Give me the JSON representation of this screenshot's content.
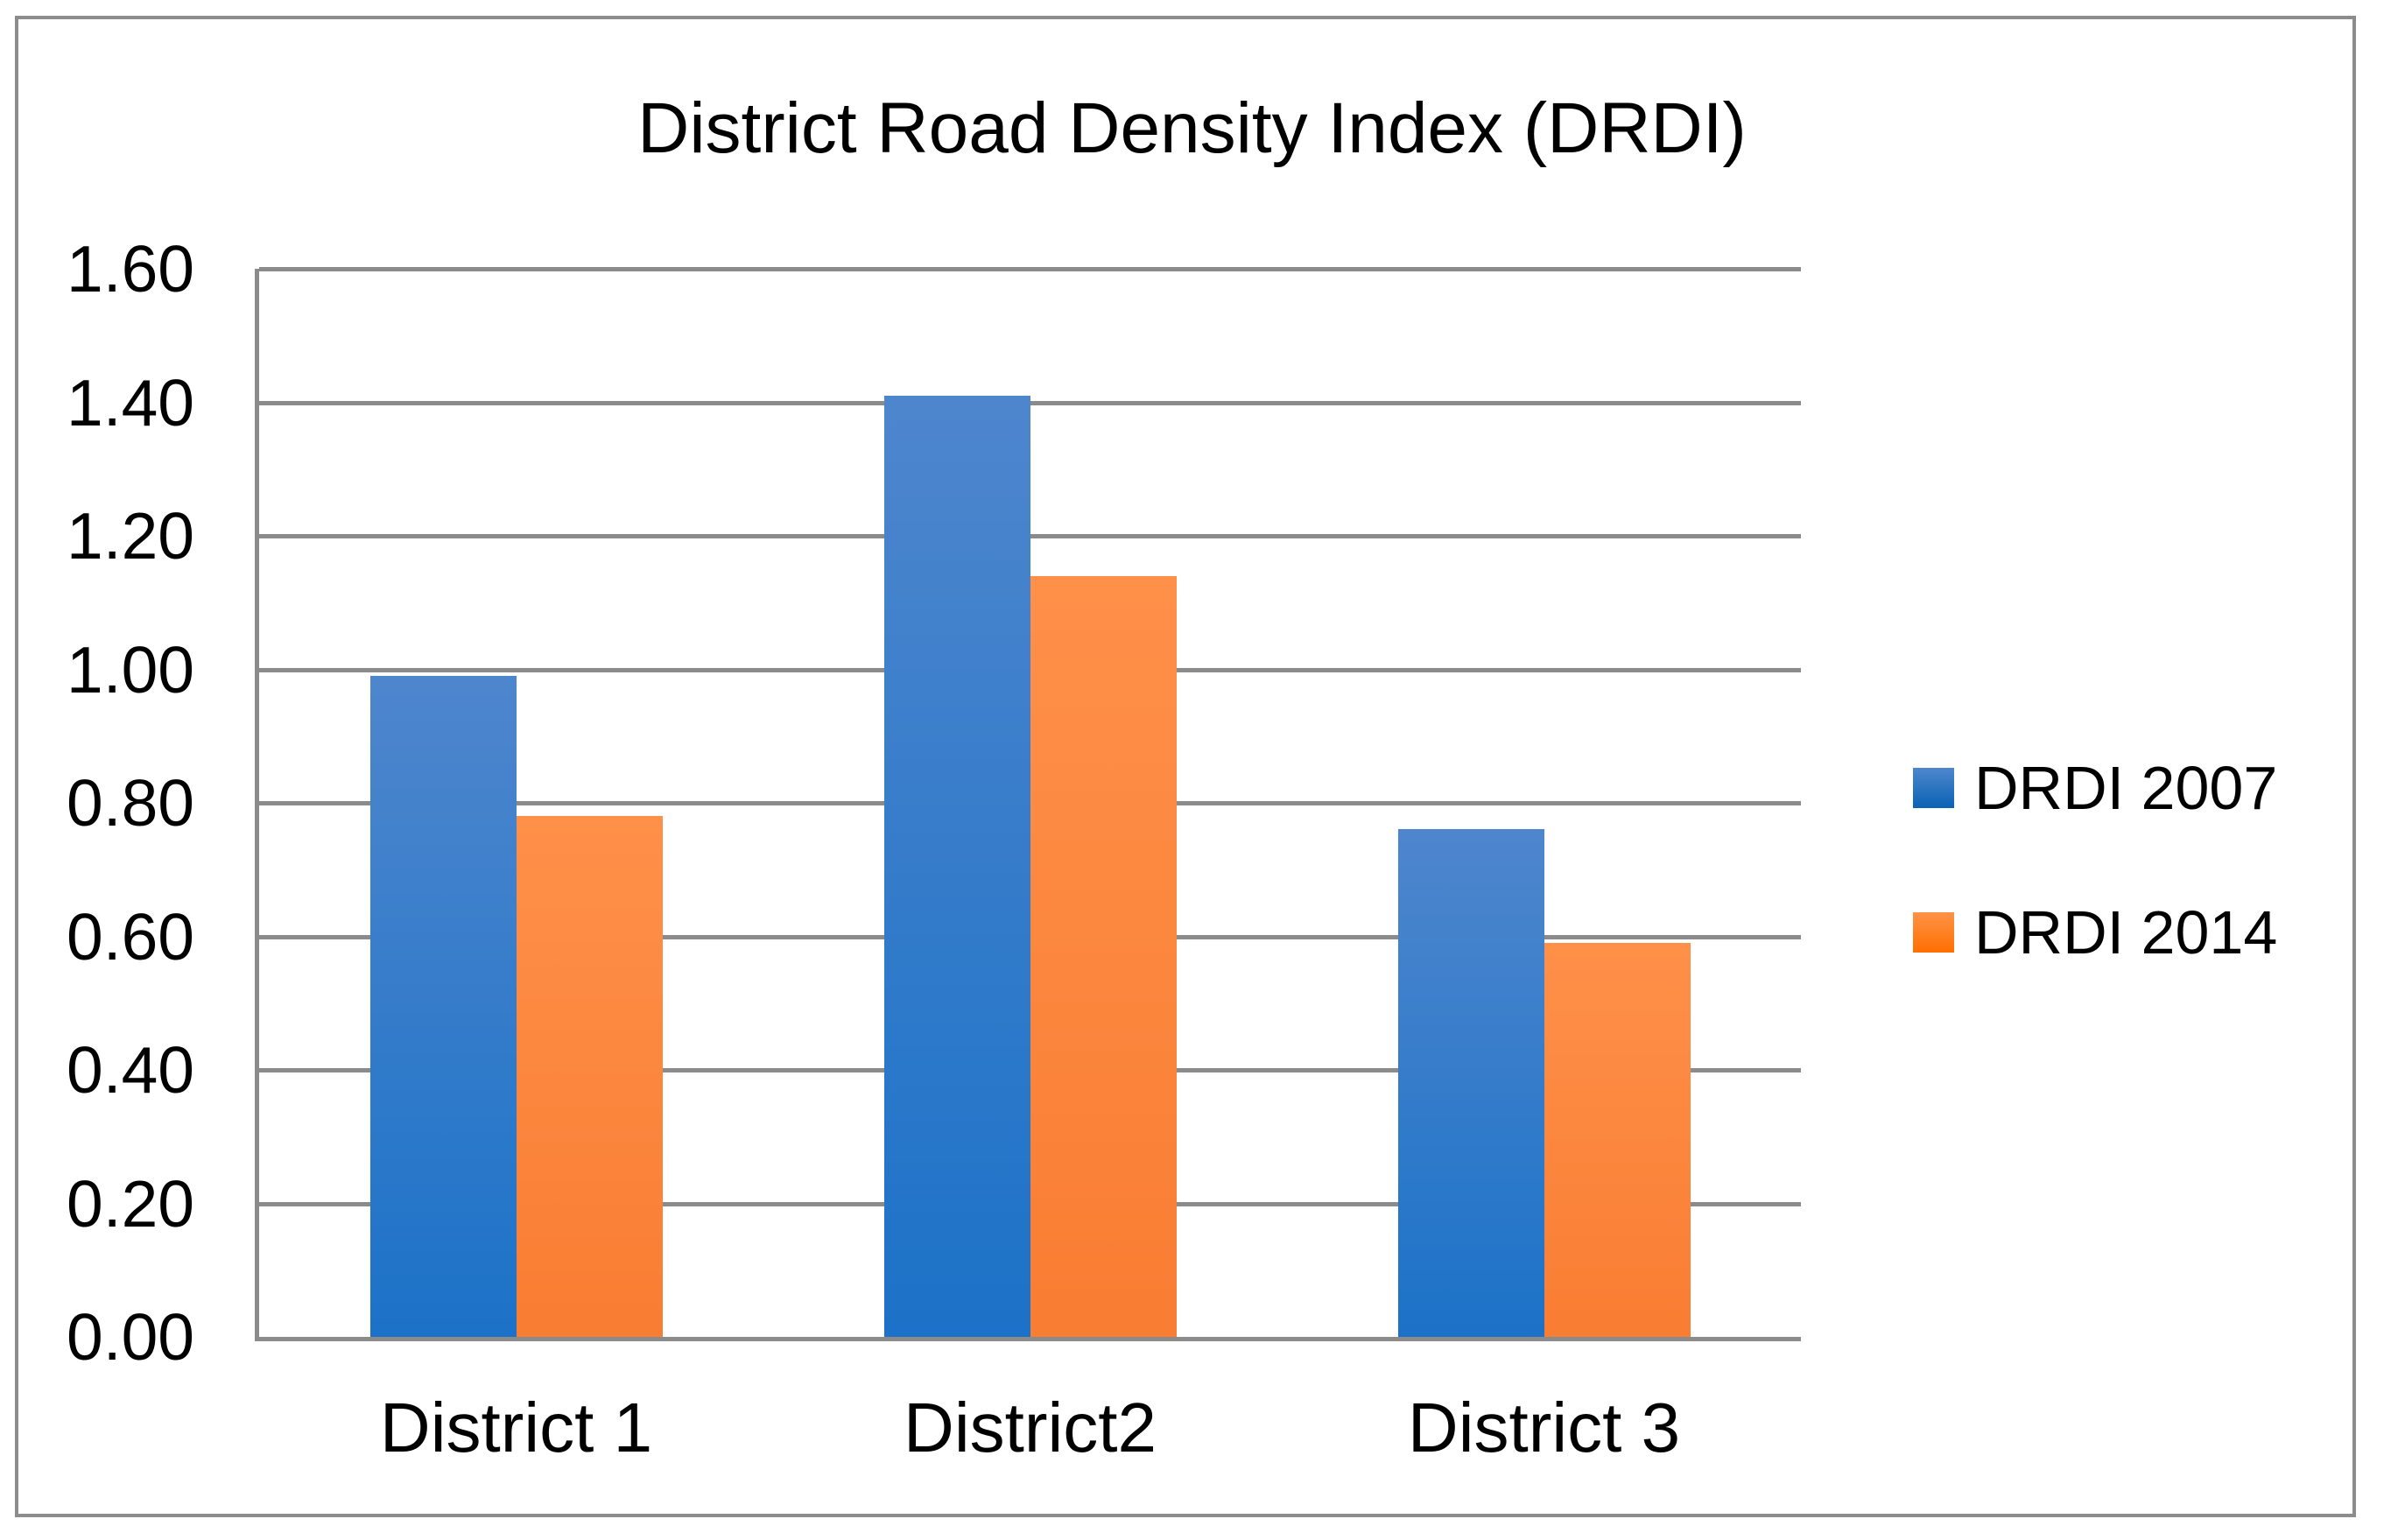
{
  "chart_data": {
    "type": "bar",
    "title": "District Road Density Index (DRDI)",
    "categories": [
      "District 1",
      "District2",
      "District 3"
    ],
    "series": [
      {
        "name": "DRDI 2007",
        "values": [
          0.99,
          1.41,
          0.76
        ],
        "bar_color_top": "#4E86CD",
        "bar_color_bottom": "#1C72C8",
        "legend_color_top": "#4E87CC",
        "legend_color_bottom": "#0A62B5"
      },
      {
        "name": "DRDI 2014",
        "values": [
          0.78,
          1.14,
          0.59
        ],
        "bar_color_top": "#FF9049",
        "bar_color_bottom": "#F97D33",
        "legend_color_top": "#FF9347",
        "legend_color_bottom": "#FF6F00"
      }
    ],
    "xlabel": "",
    "ylabel": "",
    "ylim": [
      0,
      1.6
    ],
    "ytick_labels": [
      "0.00",
      "0.20",
      "0.40",
      "0.60",
      "0.80",
      "1.00",
      "1.20",
      "1.40",
      "1.60"
    ],
    "grid": true,
    "legend_position": "right",
    "colors": {
      "gridline": "#8B8B8B",
      "axis": "#8B8B8B",
      "frame_border": "#8C8C8C",
      "text": "#000000",
      "background": "#FFFFFF"
    }
  }
}
